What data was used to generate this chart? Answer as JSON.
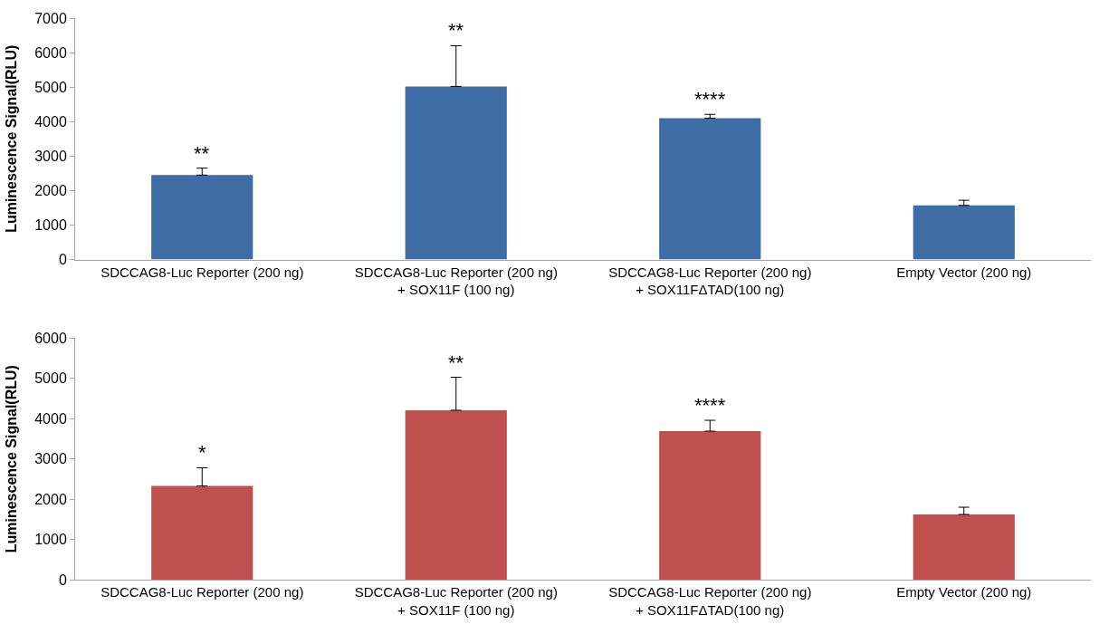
{
  "chart_data": [
    {
      "type": "bar",
      "ylabel": "Luminescence Signal(RLU)",
      "categories": [
        "SDCCAG8-Luc Reporter (200 ng)",
        "SDCCAG8-Luc Reporter (200 ng)\n+ SOX11F (100 ng)",
        "SDCCAG8-Luc Reporter (200 ng)\n+ SOX11FΔTAD(100 ng)",
        "Empty Vector (200 ng)"
      ],
      "color": "#3e6ca4",
      "values": [
        2450,
        5020,
        4100,
        1570
      ],
      "errors": [
        [
          2450,
          2650
        ],
        [
          5020,
          6200
        ],
        [
          4100,
          4210
        ],
        [
          1570,
          1720
        ]
      ],
      "ylim": [
        0,
        7000
      ],
      "yticks": [
        0,
        1000,
        2000,
        3000,
        4000,
        5000,
        6000,
        7000
      ],
      "annotations": [
        "**",
        "**",
        "****"
      ]
    },
    {
      "type": "bar",
      "ylabel": "Luminescence Signal(RLU)",
      "categories": [
        "SDCCAG8-Luc Reporter (200 ng)",
        "SDCCAG8-Luc Reporter (200 ng)\n+ SOX11F (100 ng)",
        "SDCCAG8-Luc Reporter (200 ng)\n+ SOX11FΔTAD(100 ng)",
        "Empty Vector (200 ng)"
      ],
      "color": "#c0504d",
      "values": [
        2330,
        4210,
        3690,
        1620
      ],
      "errors": [
        [
          2330,
          2780
        ],
        [
          4210,
          5030
        ],
        [
          3690,
          3960
        ],
        [
          1620,
          1800
        ]
      ],
      "ylim": [
        0,
        6000
      ],
      "yticks": [
        0,
        1000,
        2000,
        3000,
        4000,
        5000,
        6000
      ],
      "annotations": [
        "*",
        "**",
        "****"
      ]
    }
  ]
}
